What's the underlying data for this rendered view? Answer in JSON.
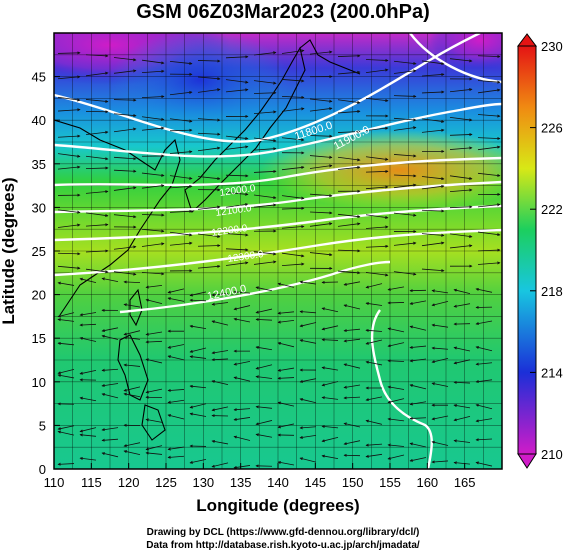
{
  "title": "GSM 06Z03Mar2023 (200.0hPa)",
  "map": {
    "xlabel": "Longitude (degrees)",
    "ylabel": "Latitude  (degrees)",
    "lon_ticks": [
      "110",
      "115",
      "120",
      "125",
      "130",
      "135",
      "140",
      "145",
      "150",
      "155",
      "160",
      "165"
    ],
    "lat_ticks": [
      "0",
      "5",
      "10",
      "15",
      "20",
      "25",
      "30",
      "35",
      "40",
      "45"
    ],
    "lon_range": [
      110,
      170
    ],
    "lat_range": [
      0,
      50
    ],
    "contour_labels": [
      "11800.0",
      "11900.0",
      "12400.0",
      "12200.0",
      "12300.0",
      "12100.0",
      "12000.0"
    ],
    "colorbar": {
      "ticks": [
        "230",
        "226",
        "222",
        "218",
        "214",
        "210"
      ],
      "range": [
        210,
        230
      ],
      "colors": [
        "#d01cc8",
        "#1b2fd8",
        "#18c6e0",
        "#1ccf5e",
        "#d8e816",
        "#f08a12",
        "#e41414"
      ]
    }
  },
  "credits": {
    "line1": "Drawing by DCL (https://www.gfd-dennou.org/library/dcl/)",
    "line2": "Data from http://database.rish.kyoto-u.ac.jp/arch/jmadata/"
  }
}
